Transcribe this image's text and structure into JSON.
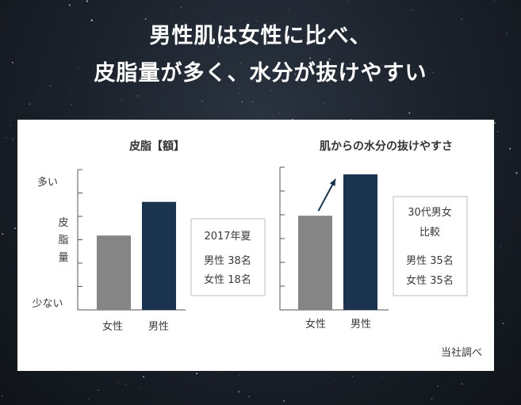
{
  "headline": {
    "line1": "男性肌は女性に比べ、",
    "line2": "皮脂量が多く、水分が抜けやすい"
  },
  "colors": {
    "female_bar": "#858585",
    "male_bar": "#1a3450",
    "axis": "#555555"
  },
  "source": "当社調べ",
  "chart_data": [
    {
      "type": "bar",
      "title": "皮脂【額】",
      "categories": [
        "女性",
        "男性"
      ],
      "values": [
        0.53,
        0.77
      ],
      "ylim": [
        0,
        1
      ],
      "y_top_label": "多い",
      "y_bottom_label": "少ない",
      "ylabel_chars": [
        "皮",
        "脂",
        "量"
      ],
      "note_lines": [
        "2017年夏",
        "男性 38名",
        "女性 18名"
      ]
    },
    {
      "type": "bar",
      "title": "肌からの水分の抜けやすさ",
      "categories": [
        "女性",
        "男性"
      ],
      "values": [
        0.66,
        0.95
      ],
      "ylim": [
        0,
        1
      ],
      "arrow_from_female_to_male": true,
      "note_lines": [
        "30代男女",
        "比較",
        "男性 35名",
        "女性 35名"
      ]
    }
  ]
}
